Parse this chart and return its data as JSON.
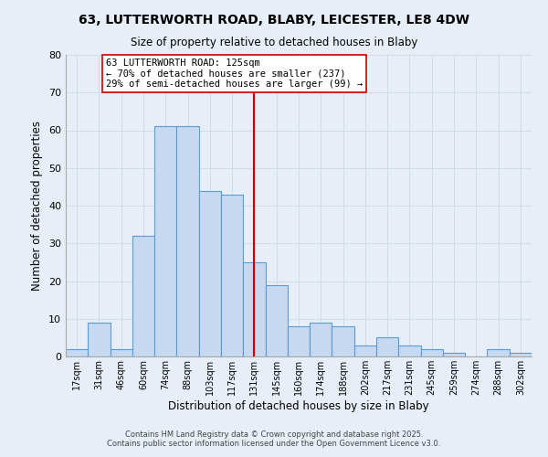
{
  "title1": "63, LUTTERWORTH ROAD, BLABY, LEICESTER, LE8 4DW",
  "title2": "Size of property relative to detached houses in Blaby",
  "xlabel": "Distribution of detached houses by size in Blaby",
  "ylabel": "Number of detached properties",
  "bar_labels": [
    "17sqm",
    "31sqm",
    "46sqm",
    "60sqm",
    "74sqm",
    "88sqm",
    "103sqm",
    "117sqm",
    "131sqm",
    "145sqm",
    "160sqm",
    "174sqm",
    "188sqm",
    "202sqm",
    "217sqm",
    "231sqm",
    "245sqm",
    "259sqm",
    "274sqm",
    "288sqm",
    "302sqm"
  ],
  "bar_heights": [
    2,
    9,
    2,
    32,
    61,
    61,
    44,
    43,
    25,
    19,
    8,
    9,
    8,
    3,
    5,
    3,
    2,
    1,
    0,
    2,
    1
  ],
  "bar_color": "#c6d9f0",
  "bar_edge_color": "#5b9bd5",
  "vline_color": "#cc0000",
  "annotation_title": "63 LUTTERWORTH ROAD: 125sqm",
  "annotation_line1": "← 70% of detached houses are smaller (237)",
  "annotation_line2": "29% of semi-detached houses are larger (99) →",
  "annotation_box_color": "#ffffff",
  "annotation_box_edge": "#cc0000",
  "ylim": [
    0,
    80
  ],
  "yticks": [
    0,
    10,
    20,
    30,
    40,
    50,
    60,
    70,
    80
  ],
  "grid_color": "#d0dce8",
  "background_color": "#e8eef8",
  "footer1": "Contains HM Land Registry data © Crown copyright and database right 2025.",
  "footer2": "Contains public sector information licensed under the Open Government Licence v3.0."
}
